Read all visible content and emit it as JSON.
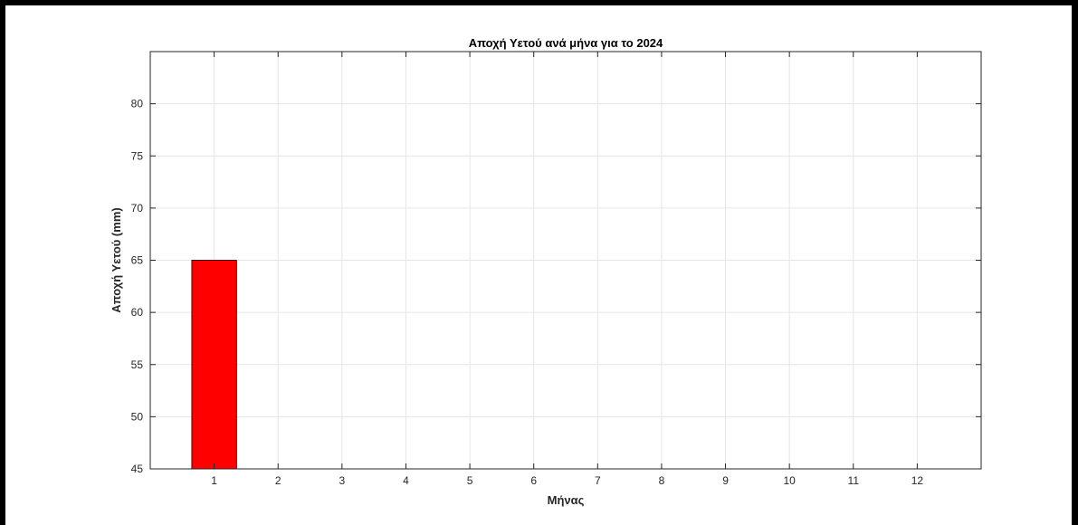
{
  "chart_data": {
    "type": "bar",
    "title": "Αποχή Υετού ανά μήνα για το 2024",
    "xlabel": "Μήνας",
    "ylabel": "Αποχή Υετού (mm)",
    "categories": [
      1,
      2,
      3,
      4,
      5,
      6,
      7,
      8,
      9,
      10,
      11,
      12
    ],
    "values": [
      65,
      null,
      null,
      null,
      null,
      null,
      null,
      null,
      null,
      null,
      null,
      null
    ],
    "xlim": [
      0,
      13
    ],
    "ylim": [
      45,
      85
    ],
    "yticks": [
      45,
      50,
      55,
      60,
      65,
      70,
      75,
      80
    ],
    "xticks": [
      1,
      2,
      3,
      4,
      5,
      6,
      7,
      8,
      9,
      10,
      11,
      12
    ],
    "grid": true,
    "bar_color": "#ff0000",
    "background_color": "#ffffff",
    "frame_color": "#000000"
  }
}
